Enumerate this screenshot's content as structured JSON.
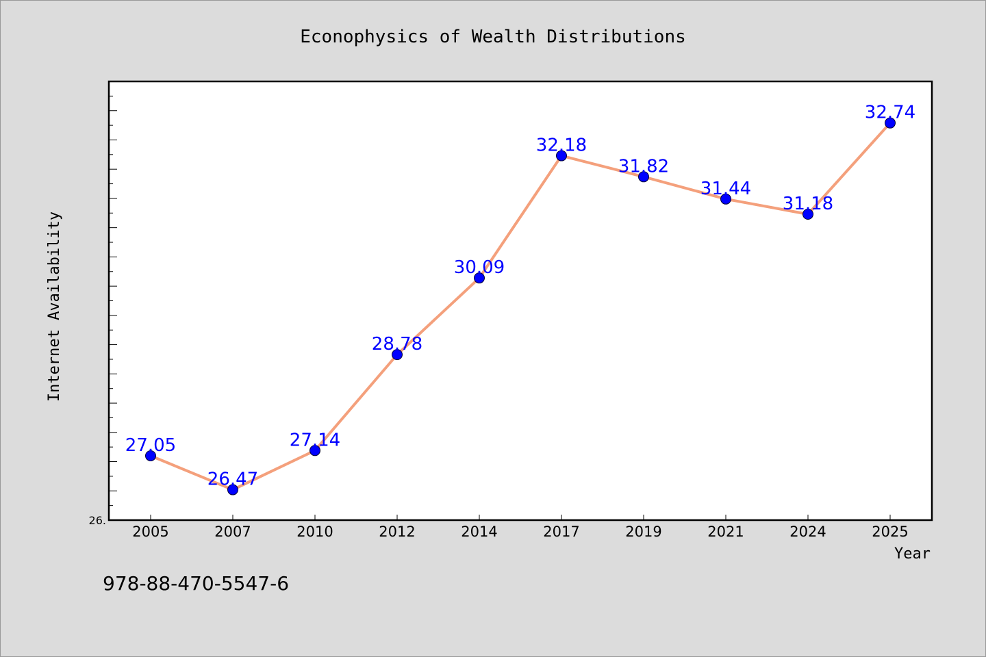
{
  "footer": {
    "isbn": "978-88-470-5547-6"
  },
  "chart_data": {
    "type": "line",
    "title": "Econophysics of Wealth Distributions",
    "xlabel": "Year",
    "ylabel": "Internet Availability",
    "categories": [
      "2005",
      "2007",
      "2010",
      "2012",
      "2014",
      "2017",
      "2019",
      "2021",
      "2024",
      "2025"
    ],
    "series": [
      {
        "values": [
          27.05,
          26.47,
          27.14,
          28.78,
          30.09,
          32.18,
          31.82,
          31.44,
          31.18,
          32.74
        ],
        "line_color": "#f4a07c",
        "marker_color": "#0000ff",
        "label_color": "#0000ff"
      }
    ],
    "ylim": [
      25.95,
      33.45
    ],
    "y_tick_labels": [
      {
        "value": 25.95,
        "label": "26."
      }
    ],
    "grid": false
  }
}
